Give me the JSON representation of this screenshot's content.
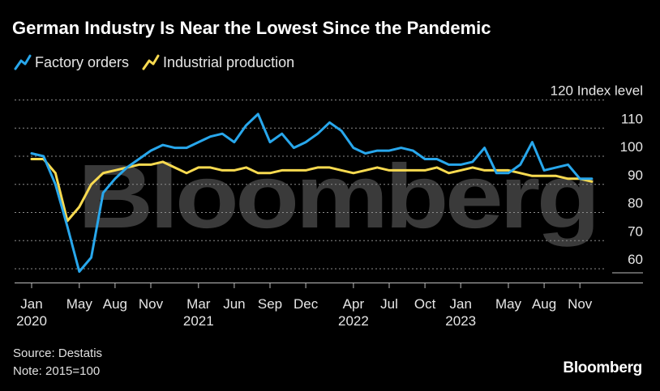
{
  "chart_data": {
    "type": "line",
    "title": "German Industry Is Near the Lowest Since the Pandemic",
    "ylabel": "Index level",
    "ylim": [
      55,
      120
    ],
    "yticks": [
      60,
      70,
      80,
      90,
      100,
      110,
      120
    ],
    "grid": true,
    "legend_placement": "top-left",
    "x_tick_labels": [
      {
        "month": "Jan",
        "year": "2020",
        "index": 0
      },
      {
        "month": "May",
        "year": "",
        "index": 4
      },
      {
        "month": "Aug",
        "year": "",
        "index": 7
      },
      {
        "month": "Nov",
        "year": "",
        "index": 10
      },
      {
        "month": "Mar",
        "year": "2021",
        "index": 14
      },
      {
        "month": "Jun",
        "year": "",
        "index": 17
      },
      {
        "month": "Sep",
        "year": "",
        "index": 20
      },
      {
        "month": "Dec",
        "year": "",
        "index": 23
      },
      {
        "month": "Apr",
        "year": "2022",
        "index": 27
      },
      {
        "month": "Jul",
        "year": "",
        "index": 30
      },
      {
        "month": "Oct",
        "year": "",
        "index": 33
      },
      {
        "month": "Jan",
        "year": "2023",
        "index": 36
      },
      {
        "month": "May",
        "year": "",
        "index": 40
      },
      {
        "month": "Aug",
        "year": "",
        "index": 43
      },
      {
        "month": "Nov",
        "year": "",
        "index": 46
      }
    ],
    "series": [
      {
        "name": "Factory orders",
        "color": "#28a7ec",
        "values": [
          101,
          100,
          90,
          75,
          59,
          64,
          87,
          92,
          96,
          99,
          102,
          104,
          103,
          103,
          105,
          107,
          108,
          105,
          111,
          115,
          105,
          108,
          103,
          105,
          108,
          112,
          109,
          103,
          101,
          102,
          102,
          103,
          102,
          99,
          99,
          97,
          97,
          98,
          103,
          94,
          94,
          97,
          105,
          95,
          96,
          97,
          92,
          92
        ]
      },
      {
        "name": "Industrial production",
        "color": "#f8da50",
        "values": [
          99,
          99,
          94,
          77,
          82,
          90,
          94,
          95,
          96,
          97,
          97,
          98,
          96,
          94,
          96,
          96,
          95,
          95,
          96,
          94,
          94,
          95,
          95,
          95,
          96,
          96,
          95,
          94,
          95,
          96,
          95,
          95,
          95,
          95,
          96,
          94,
          95,
          96,
          95,
          95,
          95,
          94,
          93,
          93,
          93,
          92,
          92,
          91
        ]
      }
    ]
  },
  "legend": {
    "items": [
      {
        "label": "Factory orders"
      },
      {
        "label": "Industrial production"
      }
    ]
  },
  "footer": {
    "source": "Source: Destatis",
    "note": "Note: 2015=100",
    "brand": "Bloomberg"
  },
  "watermark": "Bloomberg",
  "colors": {
    "background": "#000000",
    "grid": "#8c8c8c",
    "text": "#e6e6e6",
    "watermark": "#3a3a3a"
  }
}
